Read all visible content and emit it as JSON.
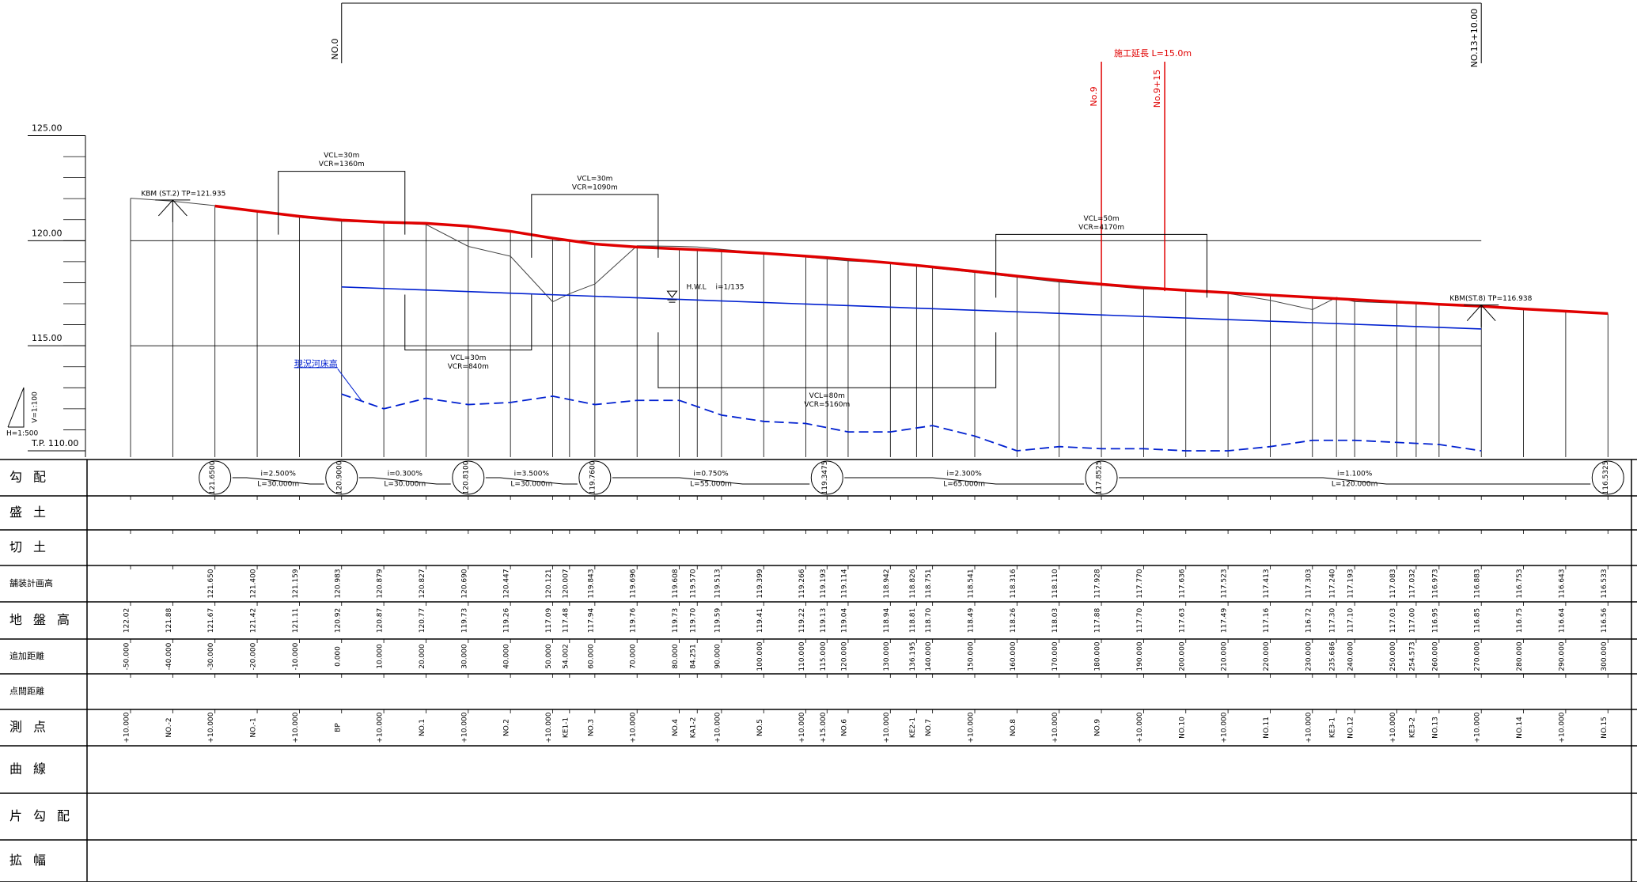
{
  "header": {
    "start": "NO.0",
    "end": "NO.13+10.00",
    "start_dist": 0,
    "end_dist": 270
  },
  "extension": {
    "label": "施工延長 L=15.0m",
    "start": "No.9",
    "end": "No.9+15",
    "start_dist": 180,
    "end_dist": 195
  },
  "elevation_axis": {
    "ylim": [
      110,
      125
    ],
    "ticks": [
      {
        "value": 125,
        "label": "125.00"
      },
      {
        "value": 120,
        "label": "120.00"
      },
      {
        "value": 115,
        "label": "115.00"
      },
      {
        "value": 110,
        "label": "T.P. 110.00"
      }
    ]
  },
  "scale": {
    "v": "V=1:100",
    "h": "H=1:500"
  },
  "benchmarks": [
    {
      "label": "KBM (ST.2) TP=121.935",
      "dist": -40,
      "elev": 121.935
    },
    {
      "label": "KBM(ST.8) TP=116.938",
      "dist": 270,
      "elev": 116.938
    }
  ],
  "vertical_curves": [
    {
      "vcl": "VCL=30m",
      "vcr": "VCR=1360m",
      "start": -15,
      "end": 15,
      "side": "up",
      "elev": 123.3
    },
    {
      "vcl": "VCL=30m",
      "vcr": "VCR=1090m",
      "start": 45,
      "end": 75,
      "side": "up",
      "elev": 122.2
    },
    {
      "vcl": "VCL=50m",
      "vcr": "VCR=4170m",
      "start": 155,
      "end": 205,
      "side": "up",
      "elev": 120.3
    },
    {
      "vcl": "VCL=30m",
      "vcr": "VCR=840m",
      "start": 15,
      "end": 45,
      "side": "down",
      "elev": 114.8
    },
    {
      "vcl": "VCL=80m",
      "vcr": "VCR=5160m",
      "start": 75,
      "end": 155,
      "side": "down",
      "elev": 113.0
    }
  ],
  "hwl": {
    "label": "H.W.L",
    "slope": "i=1/135",
    "start": [
      0,
      117.8
    ],
    "end": [
      270,
      115.8
    ]
  },
  "riverbed": {
    "label": "現況河床高",
    "x": [
      0,
      10,
      20,
      30,
      40,
      50,
      60,
      70,
      80,
      90,
      100,
      110,
      120,
      130,
      140,
      150,
      160,
      170,
      180,
      190,
      200,
      210,
      220,
      230,
      240,
      250,
      260,
      270
    ],
    "y": [
      112.7,
      112.0,
      112.5,
      112.2,
      112.3,
      112.6,
      112.2,
      112.4,
      112.4,
      111.7,
      111.4,
      111.3,
      110.9,
      110.9,
      111.2,
      110.7,
      110.0,
      110.2,
      110.1,
      110.1,
      110.0,
      110.0,
      110.2,
      110.5,
      110.5,
      110.4,
      110.3,
      110.0
    ]
  },
  "rows": [
    "勾配",
    "盛土",
    "切土",
    "舗装計画高",
    "地盤高",
    "追加距離",
    "点間距離",
    "測点",
    "曲線",
    "片勾配",
    "拡幅"
  ],
  "pivots": [
    {
      "dist": -30,
      "label": "121.6500"
    },
    {
      "dist": 0,
      "label": "120.9000"
    },
    {
      "dist": 30,
      "label": "120.8100"
    },
    {
      "dist": 60,
      "label": "119.7600"
    },
    {
      "dist": 115,
      "label": "119.3475"
    },
    {
      "dist": 180,
      "label": "117.8525"
    },
    {
      "dist": 300,
      "label": "116.5325"
    }
  ],
  "grades": [
    {
      "from": -30,
      "to": 0,
      "i": "i=2.500%",
      "l": "L=30.000m"
    },
    {
      "from": 0,
      "to": 30,
      "i": "i=0.300%",
      "l": "L=30.000m"
    },
    {
      "from": 30,
      "to": 60,
      "i": "i=3.500%",
      "l": "L=30.000m"
    },
    {
      "from": 60,
      "to": 115,
      "i": "i=0.750%",
      "l": "L=55.000m"
    },
    {
      "from": 115,
      "to": 180,
      "i": "i=2.300%",
      "l": "L=65.000m"
    },
    {
      "from": 180,
      "to": 300,
      "i": "i=1.100%",
      "l": "L=120.000m"
    }
  ],
  "columns": [
    {
      "dist": "-50.000",
      "station": "+10.000",
      "ground": "122.02",
      "plan": null
    },
    {
      "dist": "-40.000",
      "station": "NO.-2",
      "ground": "121.88",
      "plan": null
    },
    {
      "dist": "-30.000",
      "station": "+10.000",
      "ground": "121.67",
      "plan": "121.650"
    },
    {
      "dist": "-20.000",
      "station": "NO.-1",
      "ground": "121.42",
      "plan": "121.400"
    },
    {
      "dist": "-10.000",
      "station": "+10.000",
      "ground": "121.11",
      "plan": "121.159"
    },
    {
      "dist": "0.000",
      "station": "BP",
      "ground": "120.92",
      "plan": "120.983"
    },
    {
      "dist": "10.000",
      "station": "+10.000",
      "ground": "120.87",
      "plan": "120.879"
    },
    {
      "dist": "20.000",
      "station": "NO.1",
      "ground": "120.77",
      "plan": "120.827"
    },
    {
      "dist": "30.000",
      "station": "+10.000",
      "ground": "119.73",
      "plan": "120.690"
    },
    {
      "dist": "40.000",
      "station": "NO.2",
      "ground": "119.26",
      "plan": "120.447"
    },
    {
      "dist": "50.000",
      "station": "+10.000",
      "ground": "117.09",
      "plan": "120.121"
    },
    {
      "dist": "54.002",
      "station": "KE1-1",
      "ground": "117.48",
      "plan": "120.007"
    },
    {
      "dist": "60.000",
      "station": "NO.3",
      "ground": "117.94",
      "plan": "119.843"
    },
    {
      "dist": "70.000",
      "station": "+10.000",
      "ground": "119.76",
      "plan": "119.696"
    },
    {
      "dist": "80.000",
      "station": "NO.4",
      "ground": "119.73",
      "plan": "119.608"
    },
    {
      "dist": "84.251",
      "station": "KA1-2",
      "ground": "119.70",
      "plan": "119.570"
    },
    {
      "dist": "90.000",
      "station": "+10.000",
      "ground": "119.59",
      "plan": "119.513"
    },
    {
      "dist": "100.000",
      "station": "NO.5",
      "ground": "119.41",
      "plan": "119.399"
    },
    {
      "dist": "110.000",
      "station": "+10.000",
      "ground": "119.22",
      "plan": "119.266"
    },
    {
      "dist": "115.000",
      "station": "+15.000",
      "ground": "119.13",
      "plan": "119.193"
    },
    {
      "dist": "120.000",
      "station": "NO.6",
      "ground": "119.04",
      "plan": "119.114"
    },
    {
      "dist": "130.000",
      "station": "+10.000",
      "ground": "118.94",
      "plan": "118.942"
    },
    {
      "dist": "136.195",
      "station": "KE2-1",
      "ground": "118.81",
      "plan": "118.826"
    },
    {
      "dist": "140.000",
      "station": "NO.7",
      "ground": "118.70",
      "plan": "118.751"
    },
    {
      "dist": "150.000",
      "station": "+10.000",
      "ground": "118.49",
      "plan": "118.541"
    },
    {
      "dist": "160.000",
      "station": "NO.8",
      "ground": "118.26",
      "plan": "118.316"
    },
    {
      "dist": "170.000",
      "station": "+10.000",
      "ground": "118.03",
      "plan": "118.110"
    },
    {
      "dist": "180.000",
      "station": "NO.9",
      "ground": "117.88",
      "plan": "117.928"
    },
    {
      "dist": "190.000",
      "station": "+10.000",
      "ground": "117.70",
      "plan": "117.770"
    },
    {
      "dist": "200.000",
      "station": "NO.10",
      "ground": "117.63",
      "plan": "117.636"
    },
    {
      "dist": "210.000",
      "station": "+10.000",
      "ground": "117.49",
      "plan": "117.523"
    },
    {
      "dist": "220.000",
      "station": "NO.11",
      "ground": "117.16",
      "plan": "117.413"
    },
    {
      "dist": "230.000",
      "station": "+10.000",
      "ground": "116.72",
      "plan": "117.303"
    },
    {
      "dist": "235.686",
      "station": "KE3-1",
      "ground": "117.30",
      "plan": "117.240"
    },
    {
      "dist": "240.000",
      "station": "NO.12",
      "ground": "117.10",
      "plan": "117.193"
    },
    {
      "dist": "250.000",
      "station": "+10.000",
      "ground": "117.03",
      "plan": "117.083"
    },
    {
      "dist": "254.573",
      "station": "KE3-2",
      "ground": "117.00",
      "plan": "117.032"
    },
    {
      "dist": "260.000",
      "station": "NO.13",
      "ground": "116.95",
      "plan": "116.973"
    },
    {
      "dist": "270.000",
      "station": "+10.000",
      "ground": "116.85",
      "plan": "116.883"
    },
    {
      "dist": "280.000",
      "station": "NO.14",
      "ground": "116.75",
      "plan": "116.753"
    },
    {
      "dist": "290.000",
      "station": "+10.000",
      "ground": "116.64",
      "plan": "116.643"
    },
    {
      "dist": "300.000",
      "station": "NO.15",
      "ground": "116.56",
      "plan": "116.533"
    }
  ]
}
